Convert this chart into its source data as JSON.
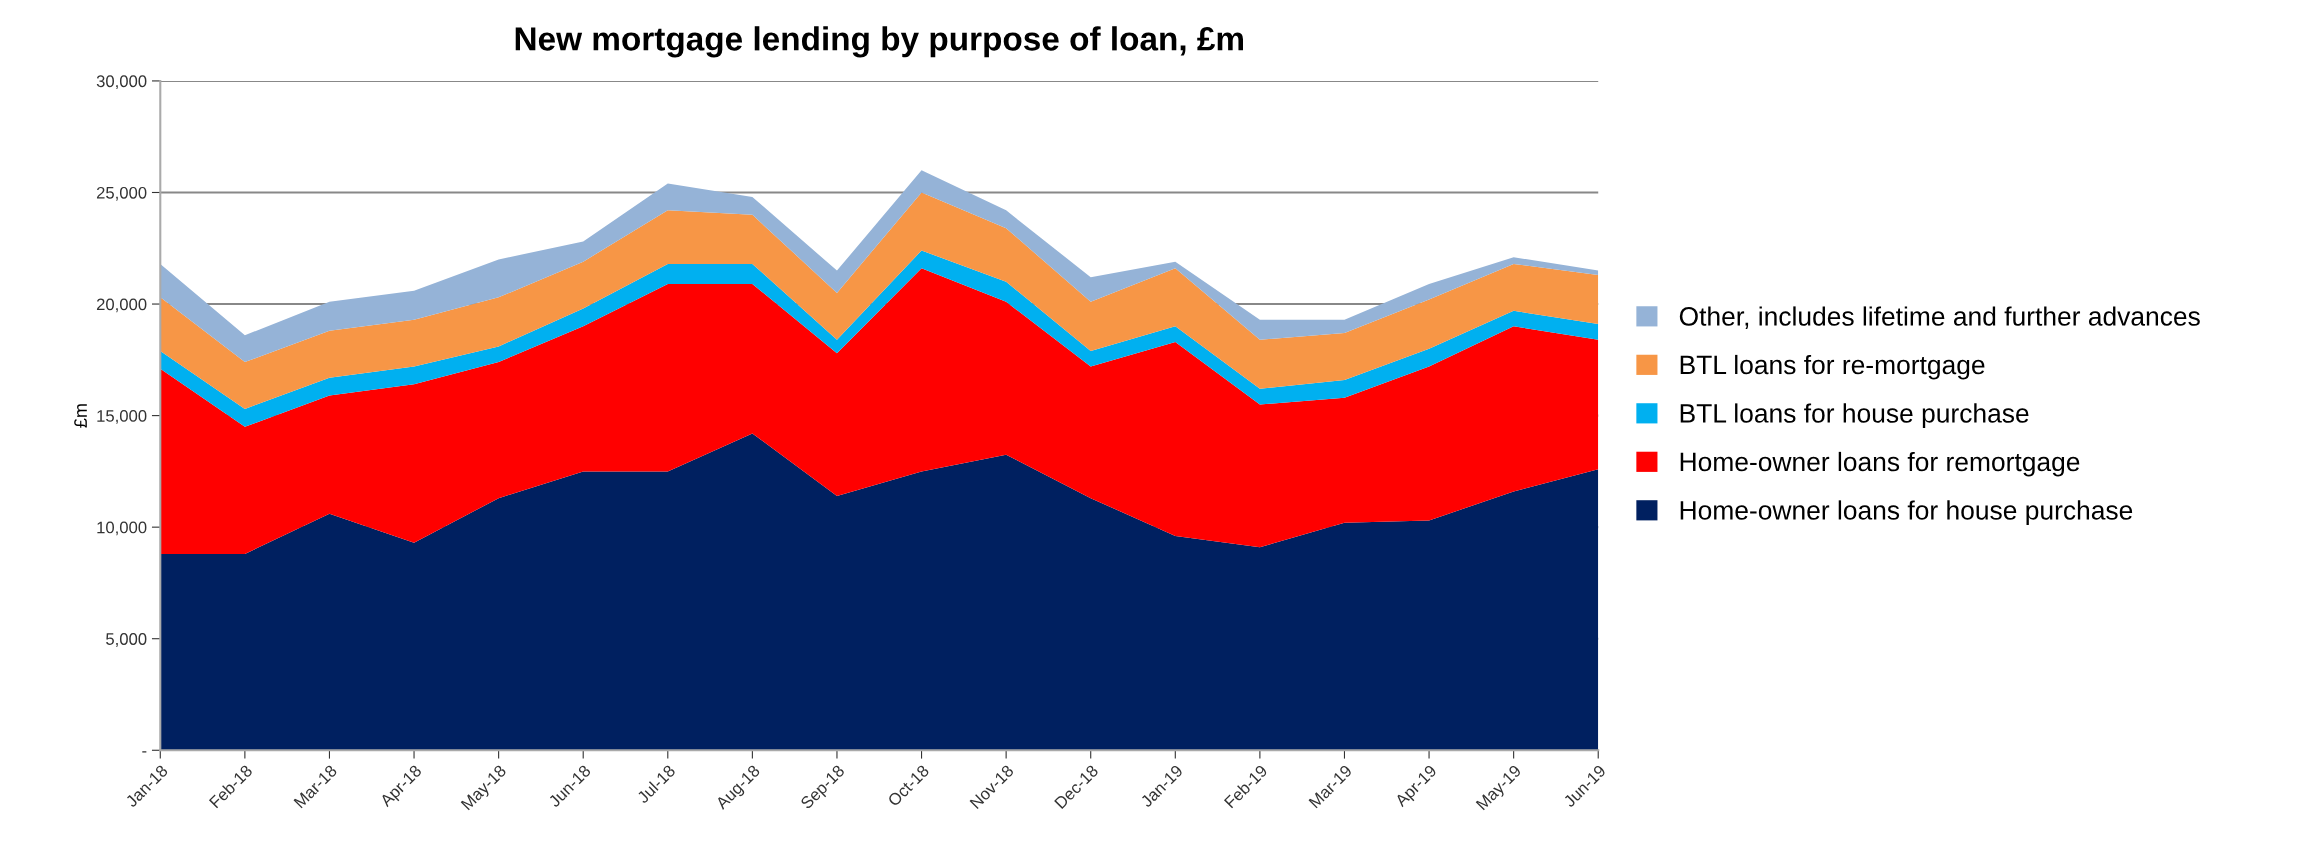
{
  "chart_data": {
    "type": "area",
    "stacked": true,
    "title": "New mortgage lending by purpose of loan, £m",
    "ylabel": "£m",
    "categories": [
      "Jan-18",
      "Feb-18",
      "Mar-18",
      "Apr-18",
      "May-18",
      "Jun-18",
      "Jul-18",
      "Aug-18",
      "Sep-18",
      "Oct-18",
      "Nov-18",
      "Dec-18",
      "Jan-19",
      "Feb-19",
      "Mar-19",
      "Apr-19",
      "May-19",
      "Jun-19"
    ],
    "series": [
      {
        "name": "Home-owner loans for house purchase",
        "color": "#002060",
        "values": [
          8800,
          8800,
          10600,
          9300,
          11300,
          12500,
          12500,
          14200,
          11400,
          12500,
          13250,
          11300,
          9600,
          9100,
          10200,
          10300,
          11600,
          12600
        ]
      },
      {
        "name": "Home-owner loans for remortgage",
        "color": "#ff0000",
        "values": [
          8300,
          5700,
          5300,
          7100,
          6100,
          6500,
          8400,
          6700,
          6400,
          9100,
          6850,
          5900,
          8700,
          6400,
          5600,
          6900,
          7400,
          5800
        ]
      },
      {
        "name": "BTL loans for house purchase",
        "color": "#00b0f0",
        "values": [
          800,
          800,
          800,
          800,
          700,
          800,
          900,
          900,
          600,
          800,
          900,
          700,
          700,
          700,
          800,
          800,
          700,
          700
        ]
      },
      {
        "name": "BTL loans for re-mortgage",
        "color": "#f79646",
        "values": [
          2400,
          2100,
          2100,
          2100,
          2200,
          2100,
          2400,
          2200,
          2100,
          2600,
          2400,
          2200,
          2600,
          2200,
          2100,
          2200,
          2100,
          2200
        ]
      },
      {
        "name": "Other, includes lifetime and further advances",
        "color": "#95b3d7",
        "values": [
          1500,
          1200,
          1300,
          1300,
          1700,
          900,
          1200,
          800,
          1000,
          1000,
          800,
          1100,
          300,
          900,
          600,
          700,
          300,
          200
        ]
      }
    ],
    "ylim": [
      0,
      30000
    ],
    "yticks": [
      {
        "value": 0,
        "label": "-"
      },
      {
        "value": 5000,
        "label": "5,000"
      },
      {
        "value": 10000,
        "label": "10,000"
      },
      {
        "value": 15000,
        "label": "15,000"
      },
      {
        "value": 20000,
        "label": "20,000"
      },
      {
        "value": 25000,
        "label": "25,000"
      },
      {
        "value": 30000,
        "label": "30,000"
      }
    ],
    "grid": "y",
    "legend": "right"
  }
}
